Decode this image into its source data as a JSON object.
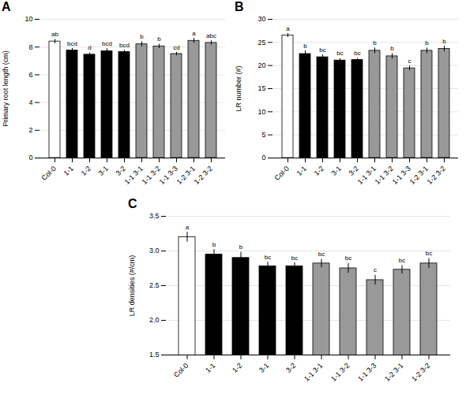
{
  "chart_data": [
    {
      "type": "bar",
      "title": "A",
      "categories": [
        "Col-0",
        "1-1",
        "1-2",
        "3-1",
        "3-2",
        "1-1 3-1",
        "1-1 3-2",
        "1-1 3-3",
        "1-2 3-1",
        "1-2 3-2"
      ],
      "values": [
        8.4,
        7.75,
        7.45,
        7.7,
        7.65,
        8.2,
        8.05,
        7.5,
        8.45,
        8.3
      ],
      "errors": [
        0.15,
        0.15,
        0.12,
        0.18,
        0.12,
        0.18,
        0.15,
        0.12,
        0.18,
        0.15
      ],
      "annotations": [
        "ab",
        "bcd",
        "d",
        "bcd",
        "bcd",
        "b",
        "b",
        "cd",
        "a",
        "abc"
      ],
      "colors": [
        "white",
        "black",
        "black",
        "black",
        "black",
        "#999999",
        "#999999",
        "#999999",
        "#999999",
        "#999999"
      ],
      "ylabel": "Primary root length (cm)",
      "ylim": [
        0,
        10
      ],
      "yticks": [
        0,
        2,
        4,
        6,
        8,
        10
      ],
      "grid": true
    },
    {
      "type": "bar",
      "title": "B",
      "categories": [
        "Col-0",
        "1-1",
        "1-2",
        "3-1",
        "3-2",
        "1-1 3-1",
        "1-1 3-2",
        "1-1 3-3",
        "1-2 3-1",
        "1-2 3-2"
      ],
      "values": [
        26.5,
        22.5,
        21.8,
        21.1,
        21.2,
        23.2,
        22.0,
        19.4,
        23.2,
        23.6
      ],
      "errors": [
        0.4,
        0.7,
        0.5,
        0.4,
        0.35,
        0.6,
        0.6,
        0.5,
        0.6,
        0.6
      ],
      "annotations": [
        "a",
        "b",
        "bc",
        "bc",
        "bc",
        "b",
        "b",
        "c",
        "b",
        "b"
      ],
      "colors": [
        "white",
        "black",
        "black",
        "black",
        "black",
        "#999999",
        "#999999",
        "#999999",
        "#999999",
        "#999999"
      ],
      "ylabel": "LR number (#)",
      "ylim": [
        0,
        30
      ],
      "yticks": [
        0,
        5,
        10,
        15,
        20,
        25,
        30
      ],
      "grid": true
    },
    {
      "type": "bar",
      "title": "C",
      "categories": [
        "Col-0",
        "1-1",
        "1-2",
        "3-1",
        "3-2",
        "1-1 3-1",
        "1-1 3-2",
        "1-1 3-3",
        "1-2 3-1",
        "1-2 3-2"
      ],
      "values": [
        3.2,
        2.95,
        2.9,
        2.78,
        2.78,
        2.82,
        2.75,
        2.58,
        2.73,
        2.82
      ],
      "errors": [
        0.07,
        0.07,
        0.08,
        0.06,
        0.05,
        0.06,
        0.07,
        0.07,
        0.06,
        0.07
      ],
      "annotations": [
        "a",
        "b",
        "b",
        "bc",
        "bc",
        "bc",
        "bc",
        "c",
        "bc",
        "bc"
      ],
      "colors": [
        "white",
        "black",
        "black",
        "black",
        "black",
        "#999999",
        "#999999",
        "#999999",
        "#999999",
        "#999999"
      ],
      "ylabel": "LR densities (#/cm)",
      "ylim": [
        1.5,
        3.5
      ],
      "yticks": [
        1.5,
        {
          "value": 2,
          "label": "2.0"
        },
        2.5,
        {
          "value": 3,
          "label": "3.0"
        },
        3.5
      ],
      "grid": true
    }
  ]
}
